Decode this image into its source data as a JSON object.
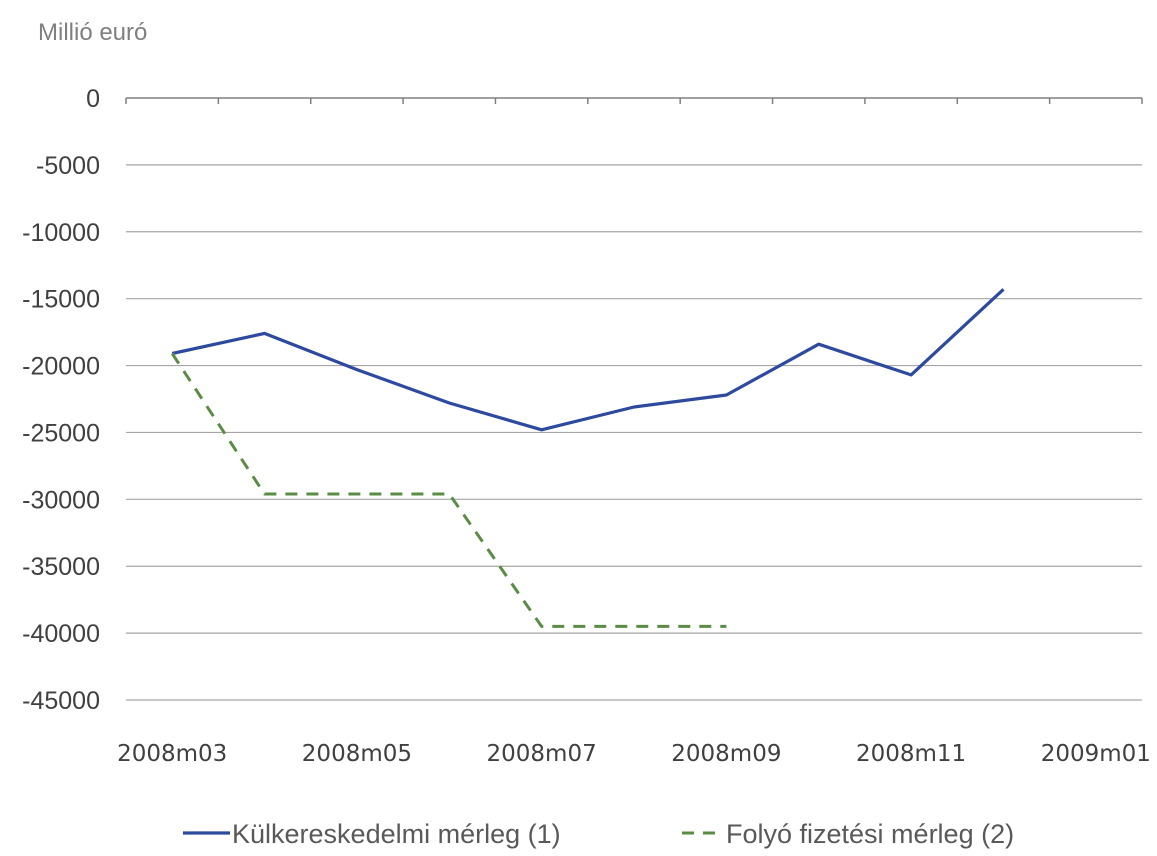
{
  "chart_data": {
    "type": "line",
    "unit_label": "Millió euró",
    "categories": [
      "2008m03",
      "2008m04",
      "2008m05",
      "2008m06",
      "2008m07",
      "2008m08",
      "2008m09",
      "2008m10",
      "2008m11",
      "2008m12",
      "2009m01"
    ],
    "x_tick_labels": [
      "2008m03",
      "2008m05",
      "2008m07",
      "2008m09",
      "2008m11",
      "2009m01"
    ],
    "y_ticks": [
      0,
      -5000,
      -10000,
      -15000,
      -20000,
      -25000,
      -30000,
      -35000,
      -40000,
      -45000
    ],
    "y_tick_labels": [
      "0",
      "-5000",
      "-10000",
      "-15000",
      "-20000",
      "-25000",
      "-30000",
      "-35000",
      "-40000",
      "-45000"
    ],
    "ylim": [
      -45000,
      0
    ],
    "grid": true,
    "legend_position": "bottom",
    "series": [
      {
        "name": "Külkereskedelmi mérleg (1)",
        "color": "#2e4a9e",
        "style": "solid",
        "values": [
          -19100,
          -17600,
          -20300,
          -22800,
          -24800,
          -23100,
          -22200,
          -18400,
          -20700,
          -14300,
          null
        ]
      },
      {
        "name": "Folyó fizetési mérleg (2)",
        "color": "#5b8c46",
        "style": "dashed",
        "values": [
          -19100,
          -29600,
          -29600,
          -29600,
          -39500,
          -39500,
          -39500,
          null,
          null,
          null,
          null
        ]
      }
    ]
  }
}
